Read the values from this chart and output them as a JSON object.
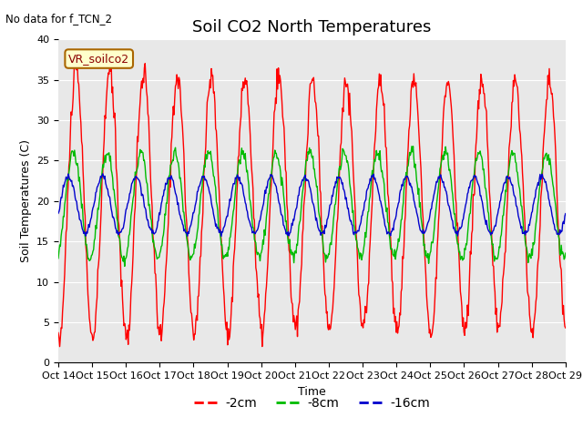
{
  "title": "Soil CO2 North Temperatures",
  "subtitle": "No data for f_TCN_2",
  "ylabel": "Soil Temperatures (C)",
  "xlabel": "Time",
  "box_label": "VR_soilco2",
  "ylim": [
    0,
    40
  ],
  "yticks": [
    0,
    5,
    10,
    15,
    20,
    25,
    30,
    35,
    40
  ],
  "xtick_labels": [
    "Oct 14",
    "Oct 15",
    "Oct 16",
    "Oct 17",
    "Oct 18",
    "Oct 19",
    "Oct 20",
    "Oct 21",
    "Oct 22",
    "Oct 23",
    "Oct 24",
    "Oct 25",
    "Oct 26",
    "Oct 27",
    "Oct 28",
    "Oct 29"
  ],
  "line_colors": {
    "2cm": "#ff0000",
    "8cm": "#00bb00",
    "16cm": "#0000cc"
  },
  "legend": [
    "-2cm",
    "-8cm",
    "-16cm"
  ],
  "bg_color": "#e8e8e8",
  "grid_color": "#ffffff",
  "title_fontsize": 13,
  "label_fontsize": 9,
  "tick_fontsize": 8
}
